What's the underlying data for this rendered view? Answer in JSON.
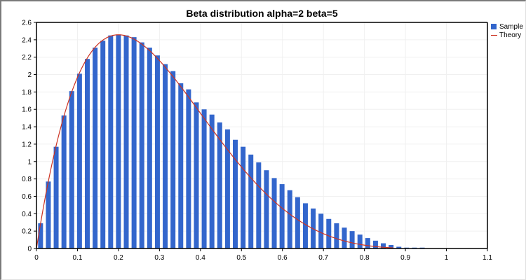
{
  "chart_data": {
    "type": "bar",
    "title": "Beta distribution alpha=2 beta=5",
    "xlabel": "",
    "ylabel": "",
    "xlim": [
      0,
      1.1
    ],
    "ylim": [
      0,
      2.6
    ],
    "x_ticks": [
      "0",
      "0.1",
      "0.2",
      "0.3",
      "0.4",
      "0.5",
      "0.6",
      "0.7",
      "0.8",
      "0.9",
      "1",
      "1.1"
    ],
    "y_ticks": [
      "0",
      "0.2",
      "0.4",
      "0.6",
      "0.8",
      "1",
      "1.2",
      "1.4",
      "1.6",
      "1.8",
      "2",
      "2.2",
      "2.4",
      "2.6"
    ],
    "grid": true,
    "legend_position": "right-top",
    "series": [
      {
        "name": "Sample",
        "kind": "bar",
        "color": "#3366cc",
        "x": [
          0.01,
          0.029,
          0.048,
          0.067,
          0.086,
          0.105,
          0.124,
          0.143,
          0.162,
          0.181,
          0.2,
          0.219,
          0.238,
          0.257,
          0.276,
          0.295,
          0.314,
          0.333,
          0.352,
          0.371,
          0.39,
          0.409,
          0.428,
          0.447,
          0.466,
          0.485,
          0.504,
          0.523,
          0.542,
          0.561,
          0.58,
          0.599,
          0.618,
          0.637,
          0.656,
          0.675,
          0.694,
          0.713,
          0.732,
          0.751,
          0.77,
          0.789,
          0.808,
          0.827,
          0.846,
          0.865,
          0.884,
          0.903,
          0.922,
          0.941
        ],
        "values": [
          0.29,
          0.77,
          1.17,
          1.53,
          1.81,
          2.01,
          2.18,
          2.31,
          2.39,
          2.45,
          2.46,
          2.45,
          2.43,
          2.37,
          2.31,
          2.22,
          2.12,
          2.04,
          1.9,
          1.83,
          1.68,
          1.6,
          1.54,
          1.45,
          1.37,
          1.25,
          1.17,
          1.08,
          0.99,
          0.9,
          0.81,
          0.74,
          0.67,
          0.59,
          0.52,
          0.46,
          0.4,
          0.34,
          0.29,
          0.24,
          0.2,
          0.16,
          0.12,
          0.09,
          0.06,
          0.04,
          0.02,
          0.01,
          0.01,
          0.01
        ]
      },
      {
        "name": "Theory",
        "kind": "line",
        "color": "#cc3322",
        "formula": "30*x*(1-x)^4",
        "x_range": [
          0,
          0.87
        ]
      }
    ]
  },
  "legend": {
    "items": [
      {
        "label": "Sample",
        "color": "#3366cc",
        "kind": "box"
      },
      {
        "label": "Theory",
        "color": "#cc3322",
        "kind": "line"
      }
    ]
  }
}
